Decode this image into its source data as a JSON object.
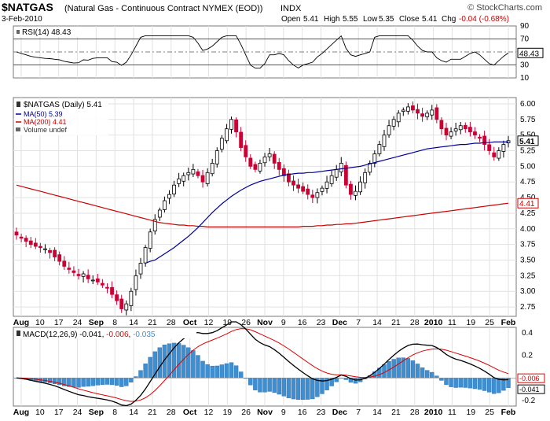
{
  "header": {
    "symbol": "$NATGAS",
    "description": "(Natural Gas - Continuous Contract NYMEX (EOD))",
    "exchange": "INDX",
    "watermark": "© StockCharts.com",
    "date": "3-Feb-2010",
    "open_label": "Open",
    "open": "5.41",
    "high_label": "High",
    "high": "5.55",
    "low_label": "Low",
    "low": "5.35",
    "close_label": "Close",
    "close": "5.41",
    "chg_label": "Chg",
    "chg": "-0.04 (-0.68%)",
    "chg_color": "#cc0000"
  },
  "colors": {
    "up_candle": "#000000",
    "down_candle": "#cc0033",
    "ma50": "#000099",
    "ma200": "#cc0000",
    "histogram": "#3e8fd1",
    "macd_line": "#000000",
    "signal_line": "#dd0000",
    "grid": "#e2e2e2"
  },
  "rsi": {
    "label": "RSI(14) 48.43",
    "current_label": "48.43",
    "ticks": [
      "90",
      "70",
      "50",
      "30",
      "10"
    ]
  },
  "price": {
    "legend_main": "$NATGAS (Daily) 5.41",
    "legend_ma50": "MA(50) 5.39",
    "legend_ma200": "MA(200) 4.41",
    "legend_volume": "Volume undef",
    "last_label": "5.41",
    "ma200_label": "4.41",
    "ticks": [
      "6.00",
      "5.75",
      "5.50",
      "5.25",
      "5.00",
      "4.75",
      "4.50",
      "4.25",
      "4.00",
      "3.75",
      "3.50",
      "3.25",
      "3.00",
      "2.75"
    ]
  },
  "macd": {
    "label_prefix": "MACD(12,26,9) ",
    "macd_value": "-0.041",
    "signal_value": "-0.006",
    "hist_value": "-0.035",
    "macd_label": "-0.041",
    "signal_label": "-0.006",
    "ticks": [
      "0.4",
      "0.2",
      "0.0",
      "-0.2"
    ]
  },
  "x_axis": {
    "labels": [
      {
        "text": "Aug",
        "bold": true
      },
      {
        "text": "10",
        "bold": false
      },
      {
        "text": "17",
        "bold": false
      },
      {
        "text": "24",
        "bold": false
      },
      {
        "text": "Sep",
        "bold": true
      },
      {
        "text": "8",
        "bold": false
      },
      {
        "text": "14",
        "bold": false
      },
      {
        "text": "21",
        "bold": false
      },
      {
        "text": "28",
        "bold": false
      },
      {
        "text": "Oct",
        "bold": true
      },
      {
        "text": "12",
        "bold": false
      },
      {
        "text": "19",
        "bold": false
      },
      {
        "text": "26",
        "bold": false
      },
      {
        "text": "Nov",
        "bold": true
      },
      {
        "text": "9",
        "bold": false
      },
      {
        "text": "16",
        "bold": false
      },
      {
        "text": "23",
        "bold": false
      },
      {
        "text": "Dec",
        "bold": true
      },
      {
        "text": "7",
        "bold": false
      },
      {
        "text": "14",
        "bold": false
      },
      {
        "text": "21",
        "bold": false
      },
      {
        "text": "28",
        "bold": false
      },
      {
        "text": "2010",
        "bold": true
      },
      {
        "text": "11",
        "bold": false
      },
      {
        "text": "19",
        "bold": false
      },
      {
        "text": "25",
        "bold": false
      },
      {
        "text": "Feb",
        "bold": true
      }
    ]
  },
  "chart_data": {
    "type": "line",
    "title": "$NATGAS (Natural Gas - Continuous Contract NYMEX (EOD))",
    "x_start": "2009-08-03",
    "x_end": "2010-02-03",
    "ohlc_closes_approx": [
      3.9,
      3.85,
      3.8,
      3.75,
      3.72,
      3.7,
      3.68,
      3.62,
      3.55,
      3.48,
      3.4,
      3.35,
      3.3,
      3.25,
      3.28,
      3.2,
      3.18,
      3.15,
      3.1,
      3.05,
      2.95,
      2.85,
      2.72,
      2.8,
      3.0,
      3.25,
      3.45,
      3.7,
      3.95,
      4.15,
      4.3,
      4.45,
      4.55,
      4.7,
      4.8,
      4.85,
      4.9,
      4.95,
      4.85,
      4.75,
      4.9,
      5.05,
      5.25,
      5.45,
      5.6,
      5.75,
      5.55,
      5.3,
      5.15,
      5.0,
      4.95,
      5.05,
      5.15,
      5.2,
      5.05,
      4.95,
      4.85,
      4.75,
      4.7,
      4.65,
      4.6,
      4.55,
      4.5,
      4.58,
      4.65,
      4.75,
      4.85,
      4.95,
      5.05,
      4.7,
      4.55,
      4.6,
      4.75,
      4.9,
      5.05,
      5.2,
      5.35,
      5.5,
      5.65,
      5.75,
      5.85,
      5.9,
      5.95,
      5.9,
      5.85,
      5.8,
      5.85,
      5.9,
      5.75,
      5.6,
      5.5,
      5.55,
      5.6,
      5.65,
      5.6,
      5.55,
      5.5,
      5.45,
      5.35,
      5.25,
      5.15,
      5.25,
      5.35,
      5.41
    ],
    "ma50_approx": [
      null,
      null,
      null,
      null,
      null,
      null,
      null,
      null,
      null,
      null,
      null,
      null,
      null,
      null,
      null,
      null,
      null,
      null,
      null,
      null,
      null,
      null,
      null,
      null,
      null,
      null,
      null,
      3.45,
      3.48,
      3.5,
      3.55,
      3.6,
      3.65,
      3.7,
      3.76,
      3.82,
      3.88,
      3.95,
      4.02,
      4.1,
      4.18,
      4.26,
      4.33,
      4.4,
      4.46,
      4.52,
      4.57,
      4.62,
      4.66,
      4.7,
      4.73,
      4.76,
      4.78,
      4.8,
      4.82,
      4.84,
      4.86,
      4.87,
      4.88,
      4.89,
      4.89,
      4.9,
      4.9,
      4.91,
      4.92,
      4.93,
      4.94,
      4.95,
      4.96,
      4.97,
      4.98,
      4.99,
      5.0,
      5.02,
      5.04,
      5.06,
      5.08,
      5.1,
      5.12,
      5.14,
      5.16,
      5.18,
      5.2,
      5.22,
      5.24,
      5.26,
      5.28,
      5.29,
      5.3,
      5.31,
      5.32,
      5.33,
      5.34,
      5.35,
      5.35,
      5.36,
      5.37,
      5.37,
      5.38,
      5.38,
      5.39,
      5.39,
      5.39,
      5.39
    ],
    "ma200_approx": [
      4.7,
      4.68,
      4.66,
      4.64,
      4.62,
      4.6,
      4.58,
      4.56,
      4.54,
      4.52,
      4.5,
      4.48,
      4.46,
      4.44,
      4.42,
      4.4,
      4.38,
      4.36,
      4.34,
      4.32,
      4.3,
      4.28,
      4.26,
      4.24,
      4.22,
      4.2,
      4.18,
      4.16,
      4.14,
      4.12,
      4.1,
      4.09,
      4.08,
      4.07,
      4.06,
      4.06,
      4.05,
      4.05,
      4.04,
      4.04,
      4.03,
      4.03,
      4.03,
      4.03,
      4.03,
      4.03,
      4.03,
      4.03,
      4.03,
      4.03,
      4.03,
      4.03,
      4.03,
      4.03,
      4.03,
      4.03,
      4.03,
      4.03,
      4.03,
      4.03,
      4.04,
      4.04,
      4.04,
      4.05,
      4.05,
      4.06,
      4.06,
      4.07,
      4.07,
      4.08,
      4.08,
      4.09,
      4.1,
      4.11,
      4.12,
      4.13,
      4.14,
      4.15,
      4.16,
      4.17,
      4.18,
      4.19,
      4.2,
      4.21,
      4.22,
      4.23,
      4.24,
      4.25,
      4.26,
      4.27,
      4.28,
      4.29,
      4.3,
      4.31,
      4.32,
      4.33,
      4.34,
      4.35,
      4.36,
      4.37,
      4.38,
      4.39,
      4.4,
      4.41
    ],
    "rsi_current": 48.43,
    "macd_current": -0.041,
    "signal_current": -0.006,
    "histogram_current": -0.035,
    "price_ylim": [
      2.6,
      6.1
    ],
    "rsi_ylim": [
      10,
      90
    ],
    "macd_ylim": [
      -0.25,
      0.45
    ],
    "grid": true,
    "legend": "top-left"
  }
}
